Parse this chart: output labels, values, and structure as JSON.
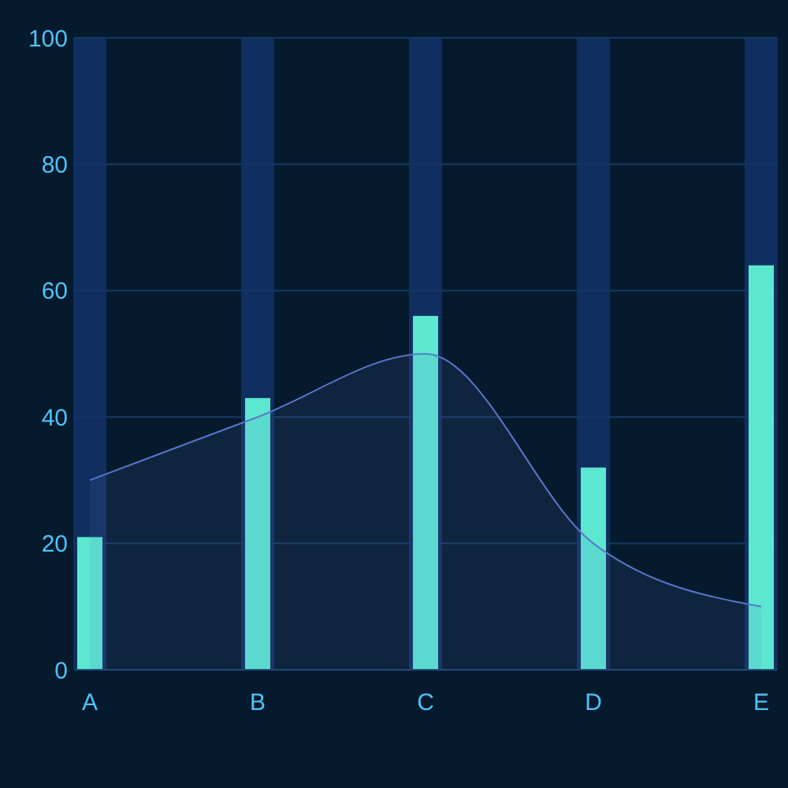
{
  "chart_data": {
    "type": "bar",
    "categories": [
      "A",
      "B",
      "C",
      "D",
      "E"
    ],
    "series": [
      {
        "color": "#13346a",
        "values": [
          100,
          100,
          100,
          100,
          100
        ]
      },
      {
        "color": "#5ce8d0",
        "values": [
          21,
          43,
          56,
          32,
          64
        ]
      },
      {
        "type": "area",
        "color": "#5877c9",
        "values": [
          30,
          40,
          50,
          20,
          10
        ]
      }
    ],
    "ylim": [
      0,
      100
    ],
    "yticks": [
      0,
      20,
      40,
      60,
      80,
      100
    ],
    "grid": "y"
  }
}
